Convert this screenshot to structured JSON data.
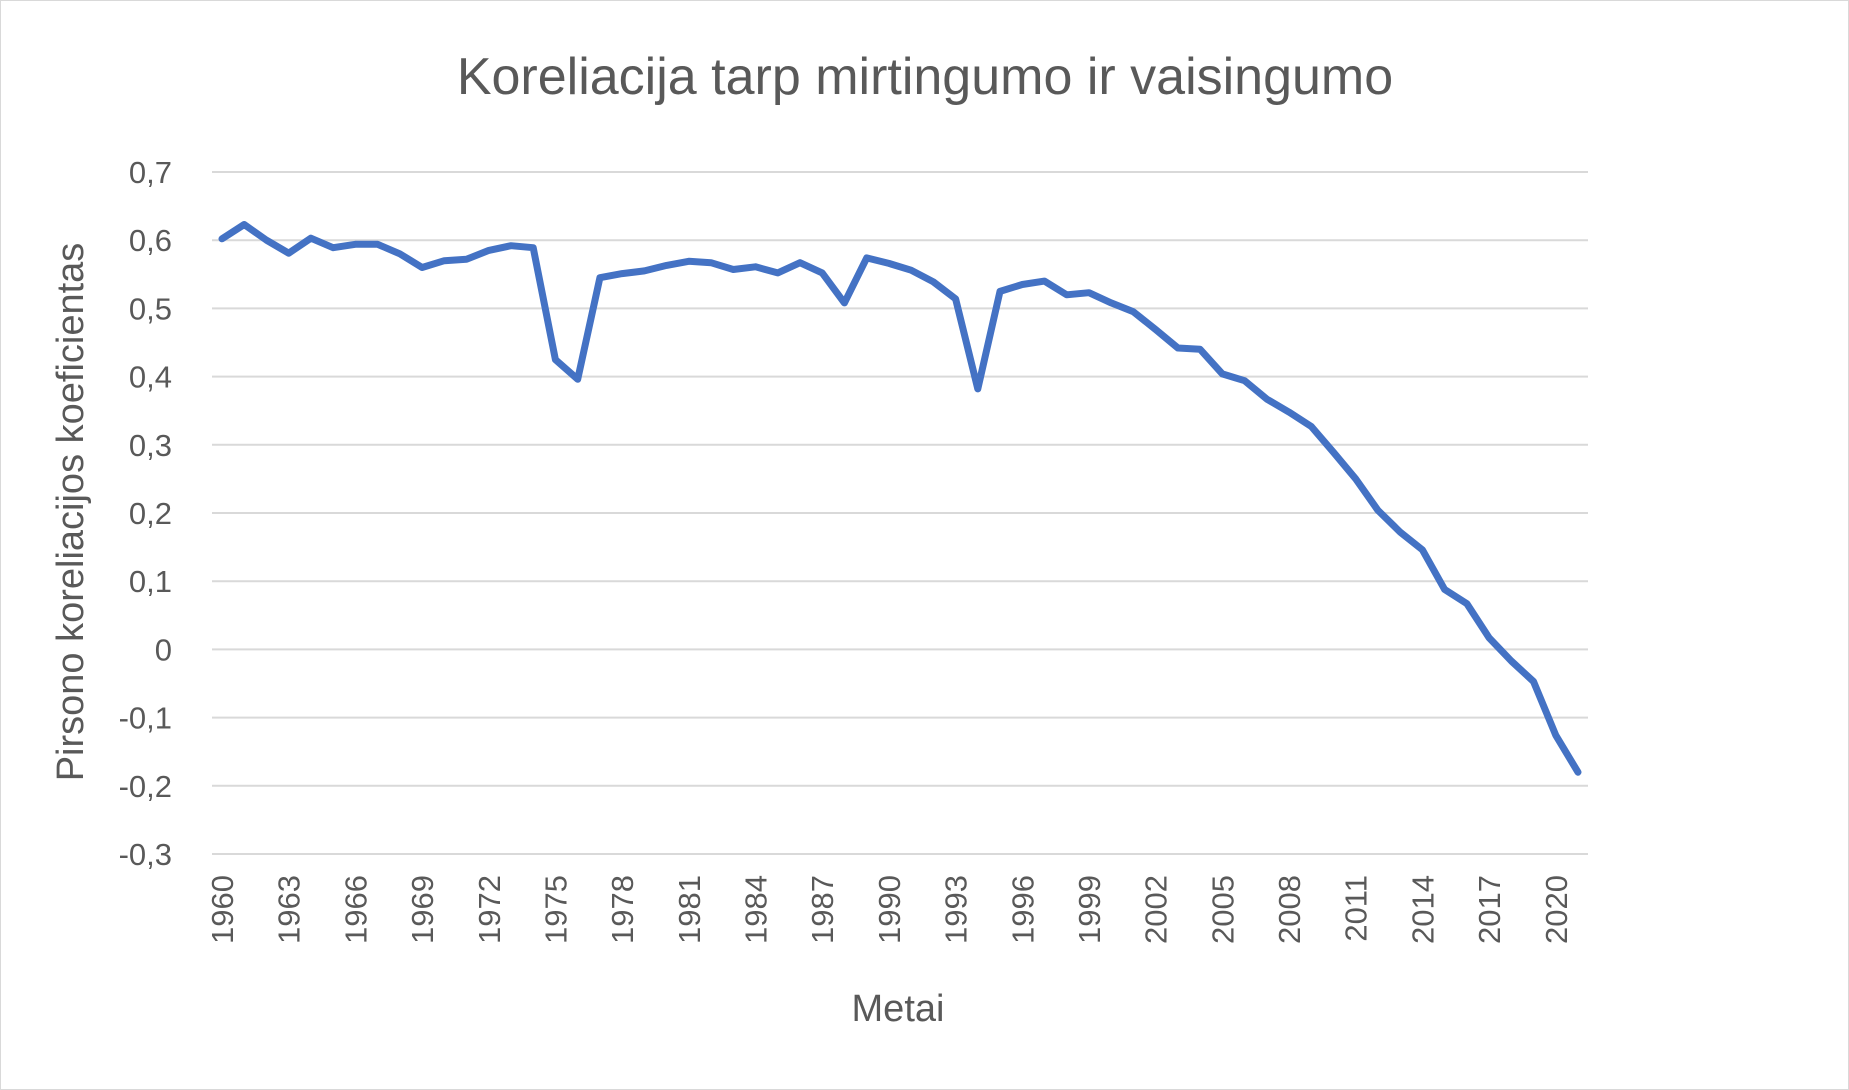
{
  "colors": {
    "series": "#4472c4",
    "grid": "#d9d9d9",
    "text": "#595959"
  },
  "chart_data": {
    "type": "line",
    "title": "Koreliacija tarp mirtingumo ir vaisingumo",
    "xlabel": "Metai",
    "ylabel": "Pirsono koreliacijos koeficientas",
    "ylim": [
      -0.3,
      0.7
    ],
    "y_ticks": [
      "0,7",
      "0,6",
      "0,5",
      "0,4",
      "0,3",
      "0,2",
      "0,1",
      "0",
      "-0,1",
      "-0,2",
      "-0,3"
    ],
    "x_ticks": [
      "1960",
      "1963",
      "1966",
      "1969",
      "1972",
      "1975",
      "1978",
      "1981",
      "1984",
      "1987",
      "1990",
      "1993",
      "1996",
      "1999",
      "2002",
      "2005",
      "2008",
      "2011",
      "2014",
      "2017",
      "2020"
    ],
    "grid": true,
    "legend": "none",
    "x": [
      1960,
      1961,
      1962,
      1963,
      1964,
      1965,
      1966,
      1967,
      1968,
      1969,
      1970,
      1971,
      1972,
      1973,
      1974,
      1975,
      1976,
      1977,
      1978,
      1979,
      1980,
      1981,
      1982,
      1983,
      1984,
      1985,
      1986,
      1987,
      1988,
      1989,
      1990,
      1991,
      1992,
      1993,
      1994,
      1995,
      1996,
      1997,
      1998,
      1999,
      2000,
      2001,
      2002,
      2003,
      2004,
      2005,
      2006,
      2007,
      2008,
      2009,
      2010,
      2011,
      2012,
      2013,
      2014,
      2015,
      2016,
      2017,
      2018,
      2019,
      2020,
      2021
    ],
    "series": [
      {
        "values": [
          0.602,
          0.623,
          0.6,
          0.581,
          0.603,
          0.589,
          0.594,
          0.594,
          0.58,
          0.56,
          0.57,
          0.572,
          0.585,
          0.592,
          0.589,
          0.425,
          0.396,
          0.545,
          0.551,
          0.555,
          0.563,
          0.569,
          0.567,
          0.557,
          0.561,
          0.552,
          0.567,
          0.552,
          0.508,
          0.574,
          0.566,
          0.556,
          0.539,
          0.514,
          0.382,
          0.525,
          0.535,
          0.54,
          0.52,
          0.523,
          0.508,
          0.495,
          0.469,
          0.442,
          0.44,
          0.404,
          0.394,
          0.367,
          0.348,
          0.327,
          0.289,
          0.25,
          0.204,
          0.172,
          0.146,
          0.088,
          0.067,
          0.017,
          -0.017,
          -0.047,
          -0.126,
          -0.18
        ]
      }
    ]
  }
}
